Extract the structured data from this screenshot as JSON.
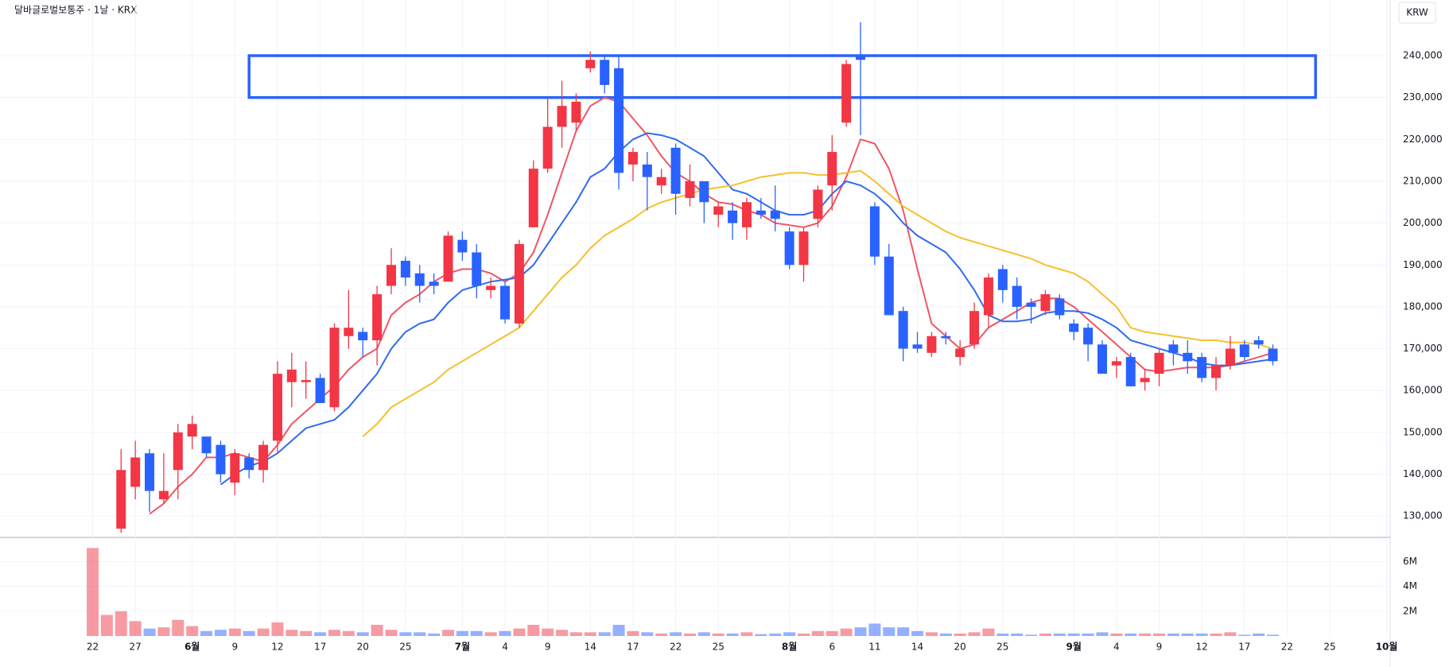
{
  "chart_data": {
    "type": "candlestick",
    "title": "달바글로벌보통주 · 1날 · KRX",
    "currency": "KRW",
    "grid": true,
    "up_color": "#f23645",
    "down_color": "#2962ff",
    "categories": [
      "22",
      null,
      null,
      "27",
      null,
      null,
      null,
      "6월",
      null,
      null,
      "9",
      null,
      null,
      "12",
      null,
      null,
      "17",
      null,
      null,
      "20",
      null,
      null,
      "25",
      null,
      null,
      null,
      "7월",
      null,
      null,
      "4",
      null,
      null,
      "9",
      null,
      null,
      "14",
      null,
      null,
      "17",
      null,
      null,
      "22",
      null,
      null,
      "25",
      null,
      null,
      null,
      null,
      "8월",
      null,
      null,
      "6",
      null,
      null,
      "11",
      null,
      null,
      "14",
      null,
      null,
      "20",
      null,
      null,
      "25",
      null,
      null,
      null,
      null,
      "9월",
      null,
      null,
      "4",
      null,
      null,
      "9",
      null,
      null,
      "12",
      null,
      null,
      "17",
      null,
      null,
      "22",
      null,
      null,
      "25",
      null,
      null,
      null,
      "10월",
      null
    ],
    "open": [
      null,
      null,
      127000,
      137000,
      145000,
      134000,
      141000,
      149000,
      149000,
      147000,
      138000,
      144000,
      141000,
      148000,
      162000,
      162000,
      163000,
      156000,
      173000,
      174000,
      172000,
      185000,
      191000,
      188000,
      186000,
      186000,
      196000,
      193000,
      184000,
      185000,
      176000,
      199000,
      213000,
      223000,
      224000,
      237000,
      239000,
      237000,
      214000,
      214000,
      209000,
      218000,
      206000,
      210000,
      202000,
      203000,
      199000,
      203000,
      203000,
      198000,
      190000,
      201000,
      209000,
      224000,
      240000,
      204000,
      192000,
      179000,
      171000,
      169000,
      173000,
      168000,
      171000,
      178000,
      189000,
      185000,
      181000,
      179000,
      182000,
      176000,
      175000,
      171000,
      166000,
      168000,
      162000,
      164000,
      171000,
      169000,
      168000,
      163000,
      166000,
      171000,
      172000,
      170000,
      null,
      null,
      null,
      null,
      null,
      null,
      null,
      null,
      null
    ],
    "high": [
      null,
      null,
      146000,
      148000,
      146000,
      145000,
      152000,
      154000,
      149000,
      148000,
      146000,
      145000,
      148000,
      167000,
      169000,
      167000,
      164000,
      176000,
      184000,
      175000,
      185000,
      194000,
      192000,
      190000,
      188000,
      198000,
      198000,
      195000,
      187000,
      186000,
      196000,
      215000,
      230000,
      234000,
      231000,
      241000,
      240000,
      240000,
      218000,
      217000,
      213000,
      219000,
      214000,
      210000,
      205000,
      205000,
      206000,
      206000,
      209000,
      199000,
      199000,
      209000,
      221000,
      239000,
      248000,
      205000,
      195000,
      180000,
      174000,
      174000,
      174000,
      172000,
      181000,
      188000,
      190000,
      187000,
      182000,
      184000,
      183000,
      177000,
      176000,
      172000,
      168000,
      169000,
      165000,
      170000,
      172000,
      172000,
      169000,
      168000,
      173000,
      172000,
      173000,
      171000,
      null,
      null,
      null,
      null,
      null,
      null,
      null,
      null,
      null
    ],
    "low": [
      null,
      null,
      126000,
      134000,
      131000,
      133000,
      134000,
      146000,
      144000,
      138000,
      135000,
      139000,
      138000,
      145000,
      156000,
      158000,
      157000,
      155000,
      170000,
      168000,
      166000,
      183000,
      185000,
      181000,
      183000,
      186000,
      191000,
      182000,
      182000,
      176000,
      175000,
      199000,
      212000,
      218000,
      222000,
      236000,
      231000,
      208000,
      210000,
      203000,
      207000,
      202000,
      204000,
      200000,
      199000,
      196000,
      196000,
      201000,
      198000,
      189000,
      186000,
      199000,
      203000,
      223000,
      221000,
      190000,
      178000,
      167000,
      169000,
      168000,
      171000,
      166000,
      170000,
      175000,
      181000,
      177000,
      176000,
      178000,
      177000,
      172000,
      167000,
      164000,
      163000,
      161000,
      160000,
      161000,
      166000,
      164000,
      162000,
      160000,
      165000,
      167000,
      170000,
      166000,
      null,
      null,
      null,
      null,
      null,
      null,
      null,
      null,
      null
    ],
    "close": [
      null,
      null,
      141000,
      144000,
      136000,
      136000,
      150000,
      152000,
      145000,
      140000,
      145000,
      141000,
      147000,
      164000,
      165000,
      162500,
      157000,
      175000,
      175000,
      172000,
      183000,
      190000,
      187000,
      185000,
      185000,
      197000,
      193000,
      185000,
      185000,
      177000,
      195000,
      213000,
      223000,
      228000,
      229000,
      239000,
      233000,
      212000,
      217000,
      211000,
      211000,
      207000,
      210000,
      205000,
      204000,
      200000,
      205000,
      202000,
      201000,
      190000,
      198000,
      208000,
      217000,
      238000,
      239000,
      192000,
      178000,
      170000,
      170000,
      173000,
      172500,
      170000,
      179000,
      187000,
      184000,
      180000,
      180000,
      183000,
      178000,
      174000,
      171000,
      164000,
      167000,
      161000,
      163000,
      169000,
      169000,
      167000,
      163000,
      166000,
      170000,
      168000,
      171000,
      167000,
      null,
      null,
      null,
      null,
      null,
      null,
      null,
      null,
      null
    ],
    "series": [
      {
        "color": "#f05563",
        "values": [
          null,
          null,
          null,
          null,
          130500,
          133000,
          137000,
          140000,
          144000,
          144000,
          145000,
          144000,
          143000,
          147000,
          152000,
          155000,
          158000,
          161000,
          165000,
          168000,
          170000,
          178000,
          181000,
          183000,
          186000,
          188000,
          189000,
          189000,
          188000,
          186000,
          188000,
          193000,
          202000,
          212000,
          222000,
          228000,
          230000,
          229000,
          225000,
          221000,
          216000,
          212000,
          210000,
          207000,
          205000,
          204500,
          203000,
          202000,
          200000,
          199500,
          199000,
          200000,
          204000,
          211000,
          220000,
          219000,
          213000,
          203000,
          189000,
          176000,
          173000,
          170000,
          171000,
          175000,
          177000,
          179000,
          181000,
          182000,
          182000,
          180000,
          177000,
          174000,
          171000,
          168000,
          165000,
          164500,
          165000,
          165500,
          165500,
          165500,
          166000,
          167000,
          168000,
          169000,
          null,
          null,
          null,
          null,
          null,
          null,
          null,
          null,
          null
        ]
      },
      {
        "color": "#2f6bf0",
        "values": [
          null,
          null,
          null,
          null,
          null,
          null,
          null,
          null,
          null,
          137500,
          140000,
          142000,
          143000,
          145000,
          148000,
          151000,
          152000,
          153000,
          156000,
          160000,
          164000,
          170000,
          174000,
          176000,
          177000,
          181000,
          184000,
          185000,
          186000,
          186500,
          187000,
          190000,
          195000,
          200000,
          205000,
          211000,
          213000,
          217000,
          220000,
          221500,
          221000,
          220000,
          218000,
          216000,
          212000,
          208000,
          207000,
          205000,
          203000,
          202000,
          202000,
          203000,
          207000,
          210000,
          209000,
          207000,
          204000,
          200000,
          197000,
          195000,
          193000,
          189000,
          184000,
          178000,
          176500,
          176500,
          177000,
          178500,
          179000,
          179000,
          178500,
          177000,
          175000,
          172000,
          171000,
          170000,
          169000,
          168000,
          166500,
          166000,
          166000,
          166500,
          167000,
          167500,
          null,
          null,
          null,
          null,
          null,
          null,
          null,
          null,
          null
        ]
      },
      {
        "color": "#f5c02c",
        "values": [
          null,
          null,
          null,
          null,
          null,
          null,
          null,
          null,
          null,
          null,
          null,
          null,
          null,
          null,
          null,
          null,
          null,
          null,
          null,
          149000,
          152000,
          156000,
          158000,
          160000,
          162000,
          165000,
          167000,
          169000,
          171000,
          173000,
          175000,
          179000,
          183000,
          187000,
          190000,
          194000,
          197000,
          199000,
          201000,
          203500,
          205000,
          206000,
          207000,
          208000,
          208500,
          209000,
          210000,
          211000,
          211500,
          212000,
          212000,
          211500,
          211500,
          212000,
          212500,
          210000,
          207000,
          204000,
          202000,
          200000,
          198000,
          196500,
          195500,
          194500,
          193500,
          192500,
          191500,
          190000,
          189000,
          188000,
          186000,
          183000,
          180000,
          175000,
          174000,
          173500,
          173000,
          172500,
          172000,
          172000,
          171500,
          171500,
          171000,
          170000,
          null,
          null,
          null,
          null,
          null,
          null,
          null,
          null,
          null
        ]
      }
    ],
    "ylim": [
      124900,
      253300
    ],
    "yticks": [
      {
        "value": 130000,
        "label": "130,000"
      },
      {
        "value": 140000,
        "label": "140,000"
      },
      {
        "value": 150000,
        "label": "150,000"
      },
      {
        "value": 160000,
        "label": "160,000"
      },
      {
        "value": 170000,
        "label": "170,000"
      },
      {
        "value": 180000,
        "label": "180,000"
      },
      {
        "value": 190000,
        "label": "190,000"
      },
      {
        "value": 200000,
        "label": "200,000"
      },
      {
        "value": 210000,
        "label": "210,000"
      },
      {
        "value": 220000,
        "label": "220,000"
      },
      {
        "value": 230000,
        "label": "230,000"
      },
      {
        "value": 240000,
        "label": "240,000"
      }
    ],
    "volume": {
      "values": [
        7.1,
        1.7,
        2.0,
        1.2,
        0.6,
        0.7,
        1.3,
        0.8,
        0.4,
        0.5,
        0.6,
        0.4,
        0.6,
        1.1,
        0.5,
        0.4,
        0.3,
        0.5,
        0.4,
        0.3,
        0.9,
        0.5,
        0.3,
        0.3,
        0.2,
        0.5,
        0.4,
        0.4,
        0.3,
        0.4,
        0.6,
        0.9,
        0.6,
        0.5,
        0.3,
        0.3,
        0.3,
        0.9,
        0.4,
        0.3,
        0.2,
        0.3,
        0.2,
        0.3,
        0.2,
        0.2,
        0.3,
        0.15,
        0.2,
        0.3,
        0.2,
        0.4,
        0.4,
        0.6,
        0.7,
        1.0,
        0.7,
        0.7,
        0.4,
        0.3,
        0.2,
        0.2,
        0.3,
        0.6,
        0.2,
        0.2,
        0.1,
        0.2,
        0.2,
        0.2,
        0.2,
        0.3,
        0.2,
        0.2,
        0.2,
        0.2,
        0.2,
        0.2,
        0.2,
        0.2,
        0.3,
        0.1,
        0.2,
        0.1,
        null,
        null,
        null,
        null,
        null,
        null,
        null,
        null,
        null
      ],
      "ylim": [
        0,
        7.7
      ],
      "yticks": [
        {
          "value": 2,
          "label": "2M"
        },
        {
          "value": 4,
          "label": "4M"
        },
        {
          "value": 6,
          "label": "6M"
        }
      ]
    },
    "box": {
      "from": 11,
      "to": 86,
      "ylim": [
        230000,
        240000
      ],
      "color": "#2962ff"
    }
  }
}
